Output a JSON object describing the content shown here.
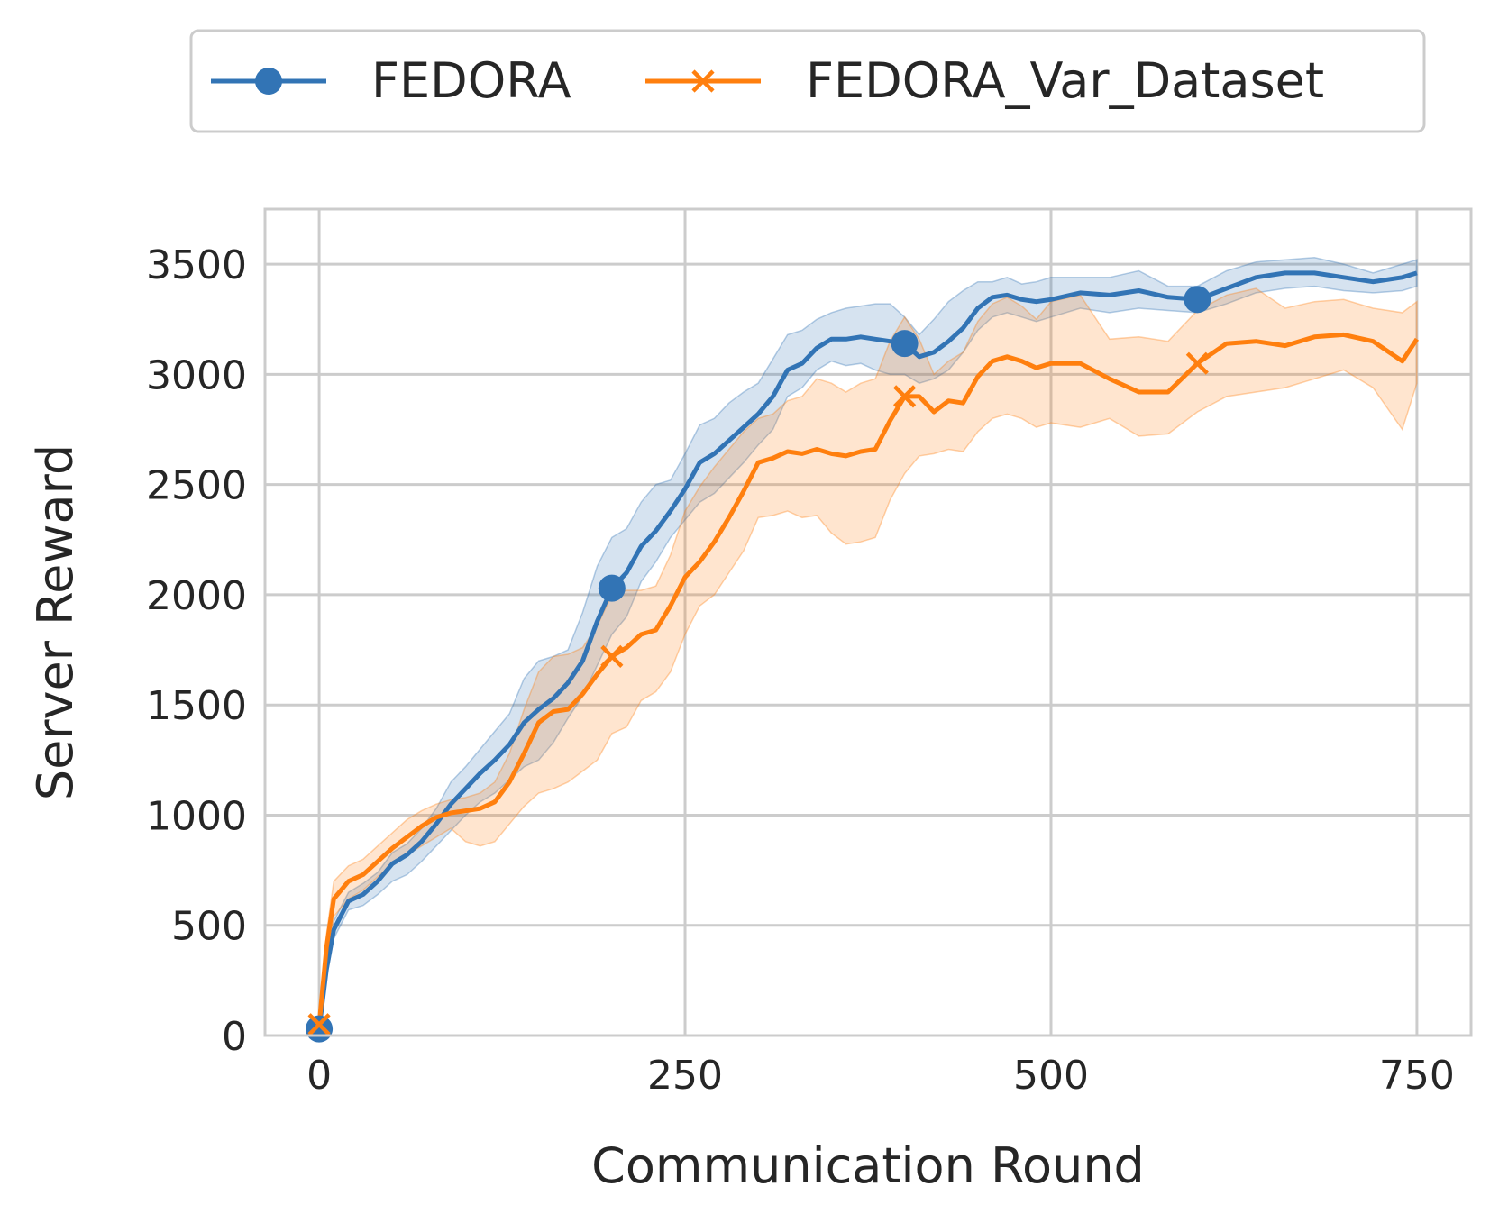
{
  "chart_data": {
    "type": "line",
    "title": "",
    "xlabel": "Communication Round",
    "ylabel": "Server Reward",
    "xlim": [
      -37,
      787
    ],
    "ylim": [
      0,
      3750
    ],
    "xticks": [
      0,
      250,
      500,
      750
    ],
    "yticks": [
      0,
      500,
      1000,
      1500,
      2000,
      2500,
      3000,
      3500
    ],
    "grid": true,
    "legend_position": "top-center (outside plot)",
    "series": [
      {
        "name": "FEDORA",
        "color": "#3274b5",
        "marker": "circle",
        "marker_x": [
          0,
          200,
          400,
          600
        ],
        "x": [
          0,
          5,
          10,
          20,
          30,
          40,
          50,
          60,
          70,
          80,
          90,
          100,
          110,
          120,
          130,
          140,
          150,
          160,
          170,
          180,
          190,
          200,
          210,
          220,
          230,
          240,
          250,
          260,
          270,
          280,
          290,
          300,
          310,
          320,
          330,
          340,
          350,
          360,
          370,
          380,
          390,
          400,
          410,
          420,
          430,
          440,
          450,
          460,
          470,
          480,
          490,
          500,
          520,
          540,
          560,
          580,
          600,
          620,
          640,
          660,
          680,
          700,
          720,
          740,
          750
        ],
        "y": [
          30,
          300,
          480,
          610,
          640,
          700,
          780,
          820,
          880,
          960,
          1050,
          1120,
          1190,
          1250,
          1320,
          1420,
          1480,
          1530,
          1600,
          1700,
          1880,
          2030,
          2100,
          2220,
          2290,
          2380,
          2480,
          2600,
          2640,
          2700,
          2760,
          2820,
          2900,
          3020,
          3050,
          3120,
          3160,
          3160,
          3170,
          3160,
          3150,
          3140,
          3080,
          3100,
          3150,
          3210,
          3300,
          3350,
          3360,
          3340,
          3330,
          3340,
          3370,
          3360,
          3380,
          3350,
          3340,
          3390,
          3440,
          3460,
          3460,
          3440,
          3420,
          3440,
          3460
        ],
        "upper": [
          40,
          340,
          520,
          650,
          690,
          740,
          830,
          870,
          940,
          1030,
          1150,
          1220,
          1300,
          1380,
          1460,
          1620,
          1700,
          1720,
          1750,
          1920,
          2130,
          2260,
          2300,
          2420,
          2500,
          2520,
          2640,
          2770,
          2800,
          2870,
          2920,
          2960,
          3070,
          3180,
          3200,
          3250,
          3280,
          3300,
          3310,
          3320,
          3320,
          3260,
          3180,
          3250,
          3330,
          3380,
          3420,
          3420,
          3440,
          3410,
          3420,
          3440,
          3440,
          3440,
          3470,
          3400,
          3400,
          3470,
          3510,
          3520,
          3530,
          3500,
          3460,
          3500,
          3520
        ],
        "lower": [
          20,
          260,
          440,
          570,
          590,
          640,
          700,
          730,
          790,
          860,
          930,
          1000,
          1060,
          1100,
          1160,
          1220,
          1250,
          1330,
          1440,
          1540,
          1680,
          1820,
          1900,
          2060,
          2150,
          2260,
          2340,
          2420,
          2460,
          2530,
          2600,
          2680,
          2750,
          2900,
          2940,
          3020,
          3060,
          3040,
          3050,
          3020,
          3000,
          3000,
          2960,
          2980,
          3020,
          3100,
          3200,
          3260,
          3280,
          3260,
          3240,
          3260,
          3300,
          3280,
          3300,
          3290,
          3280,
          3320,
          3370,
          3390,
          3400,
          3380,
          3370,
          3380,
          3400
        ]
      },
      {
        "name": "FEDORA_Var_Dataset",
        "color": "#ff7f0e",
        "marker": "x",
        "marker_x": [
          0,
          200,
          400,
          600
        ],
        "x": [
          0,
          5,
          10,
          20,
          30,
          40,
          50,
          60,
          70,
          80,
          90,
          100,
          110,
          120,
          130,
          140,
          150,
          160,
          170,
          180,
          190,
          200,
          210,
          220,
          230,
          240,
          250,
          260,
          270,
          280,
          290,
          300,
          310,
          320,
          330,
          340,
          350,
          360,
          370,
          380,
          390,
          400,
          410,
          420,
          430,
          440,
          450,
          460,
          470,
          480,
          490,
          500,
          520,
          540,
          560,
          580,
          600,
          620,
          640,
          660,
          680,
          700,
          720,
          740,
          750
        ],
        "y": [
          50,
          400,
          620,
          700,
          730,
          790,
          850,
          900,
          950,
          990,
          1010,
          1020,
          1030,
          1060,
          1150,
          1280,
          1420,
          1470,
          1480,
          1550,
          1640,
          1720,
          1760,
          1820,
          1840,
          1950,
          2080,
          2150,
          2240,
          2350,
          2470,
          2600,
          2620,
          2650,
          2640,
          2660,
          2640,
          2630,
          2650,
          2660,
          2790,
          2900,
          2900,
          2830,
          2880,
          2870,
          2990,
          3060,
          3080,
          3060,
          3030,
          3050,
          3050,
          2980,
          2920,
          2920,
          3050,
          3140,
          3150,
          3130,
          3170,
          3180,
          3150,
          3060,
          3160
        ],
        "upper": [
          60,
          460,
          700,
          770,
          800,
          860,
          920,
          980,
          1020,
          1050,
          1070,
          1080,
          1100,
          1150,
          1280,
          1480,
          1650,
          1720,
          1730,
          1760,
          1860,
          2000,
          2020,
          2020,
          2040,
          2180,
          2380,
          2490,
          2580,
          2660,
          2740,
          2800,
          2820,
          2880,
          2900,
          2980,
          2960,
          2920,
          2960,
          2980,
          3150,
          3260,
          3160,
          3000,
          3060,
          3100,
          3240,
          3320,
          3350,
          3310,
          3250,
          3330,
          3360,
          3160,
          3170,
          3150,
          3290,
          3360,
          3390,
          3300,
          3330,
          3340,
          3300,
          3280,
          3330
        ],
        "lower": [
          40,
          340,
          540,
          620,
          660,
          720,
          780,
          820,
          860,
          900,
          940,
          880,
          860,
          880,
          960,
          1040,
          1100,
          1120,
          1150,
          1200,
          1250,
          1370,
          1400,
          1520,
          1560,
          1650,
          1820,
          1950,
          2000,
          2100,
          2200,
          2350,
          2360,
          2380,
          2350,
          2360,
          2280,
          2230,
          2240,
          2260,
          2430,
          2550,
          2630,
          2640,
          2660,
          2650,
          2740,
          2800,
          2820,
          2800,
          2760,
          2780,
          2760,
          2800,
          2720,
          2730,
          2830,
          2900,
          2920,
          2940,
          2980,
          3020,
          2940,
          2750,
          2960
        ]
      }
    ]
  }
}
